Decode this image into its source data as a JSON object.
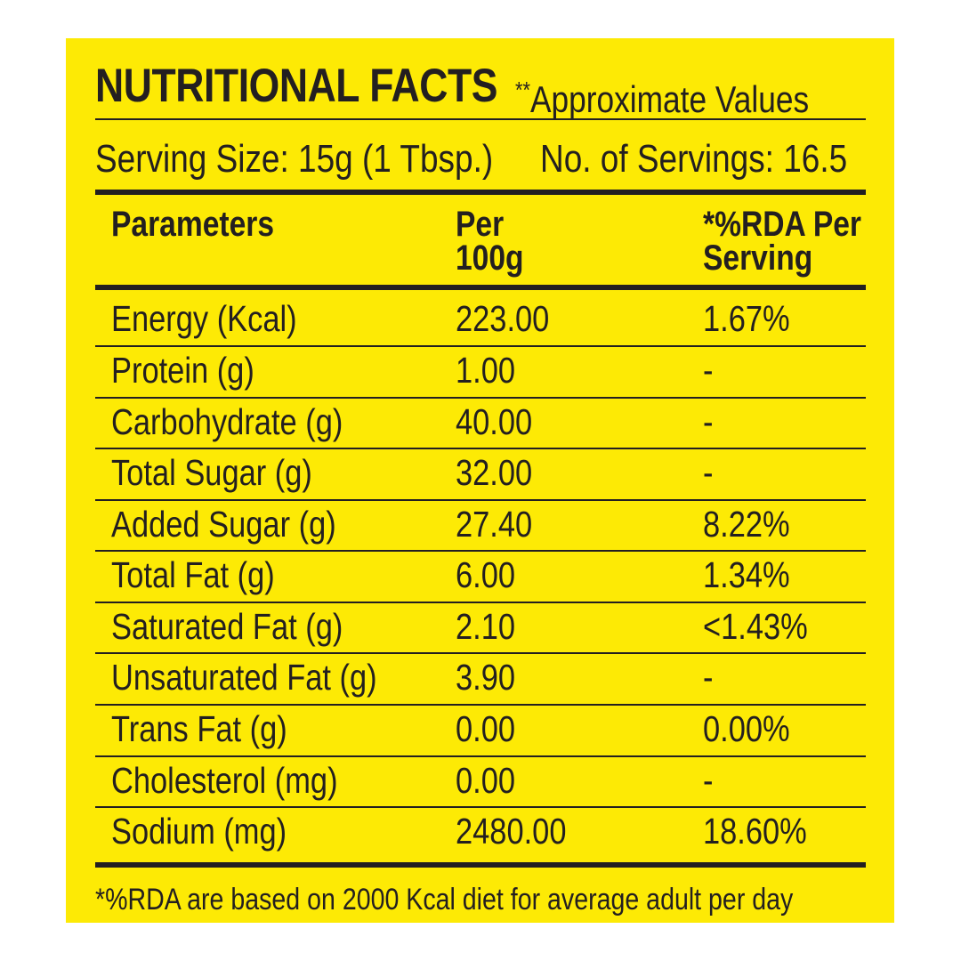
{
  "header": {
    "title": "NUTRITIONAL FACTS",
    "note_marker": "**",
    "note": "Approximate Values"
  },
  "serving": {
    "size_text": "Serving Size: 15g (1 Tbsp.)",
    "servings_text": "No. of Servings: 16.5"
  },
  "table": {
    "columns": [
      {
        "line1": "Parameters",
        "line2": ""
      },
      {
        "line1": "Per",
        "line2": "100g"
      },
      {
        "line1": "*%RDA Per",
        "line2": "Serving"
      }
    ],
    "rows": [
      {
        "parameter": "Energy (Kcal)",
        "per_100g": "223.00",
        "rda": "1.67%"
      },
      {
        "parameter": "Protein (g)",
        "per_100g": "1.00",
        "rda": "-"
      },
      {
        "parameter": "Carbohydrate (g)",
        "per_100g": "40.00",
        "rda": "-"
      },
      {
        "parameter": "Total Sugar (g)",
        "per_100g": "32.00",
        "rda": "-"
      },
      {
        "parameter": "Added Sugar (g)",
        "per_100g": "27.40",
        "rda": "8.22%"
      },
      {
        "parameter": "Total Fat (g)",
        "per_100g": "6.00",
        "rda": "1.34%"
      },
      {
        "parameter": "Saturated Fat (g)",
        "per_100g": "2.10",
        "rda": "<1.43%"
      },
      {
        "parameter": "Unsaturated Fat (g)",
        "per_100g": "3.90",
        "rda": "-"
      },
      {
        "parameter": "Trans Fat (g)",
        "per_100g": "0.00",
        "rda": "0.00%"
      },
      {
        "parameter": "Cholesterol (mg)",
        "per_100g": "0.00",
        "rda": "-"
      },
      {
        "parameter": "Sodium (mg)",
        "per_100g": "2480.00",
        "rda": "18.60%"
      }
    ]
  },
  "footnote": "*%RDA are based on 2000 Kcal diet for average adult per day",
  "colors": {
    "panel_background": "#fdea05",
    "text": "#231f20",
    "page_background": "#ffffff"
  }
}
